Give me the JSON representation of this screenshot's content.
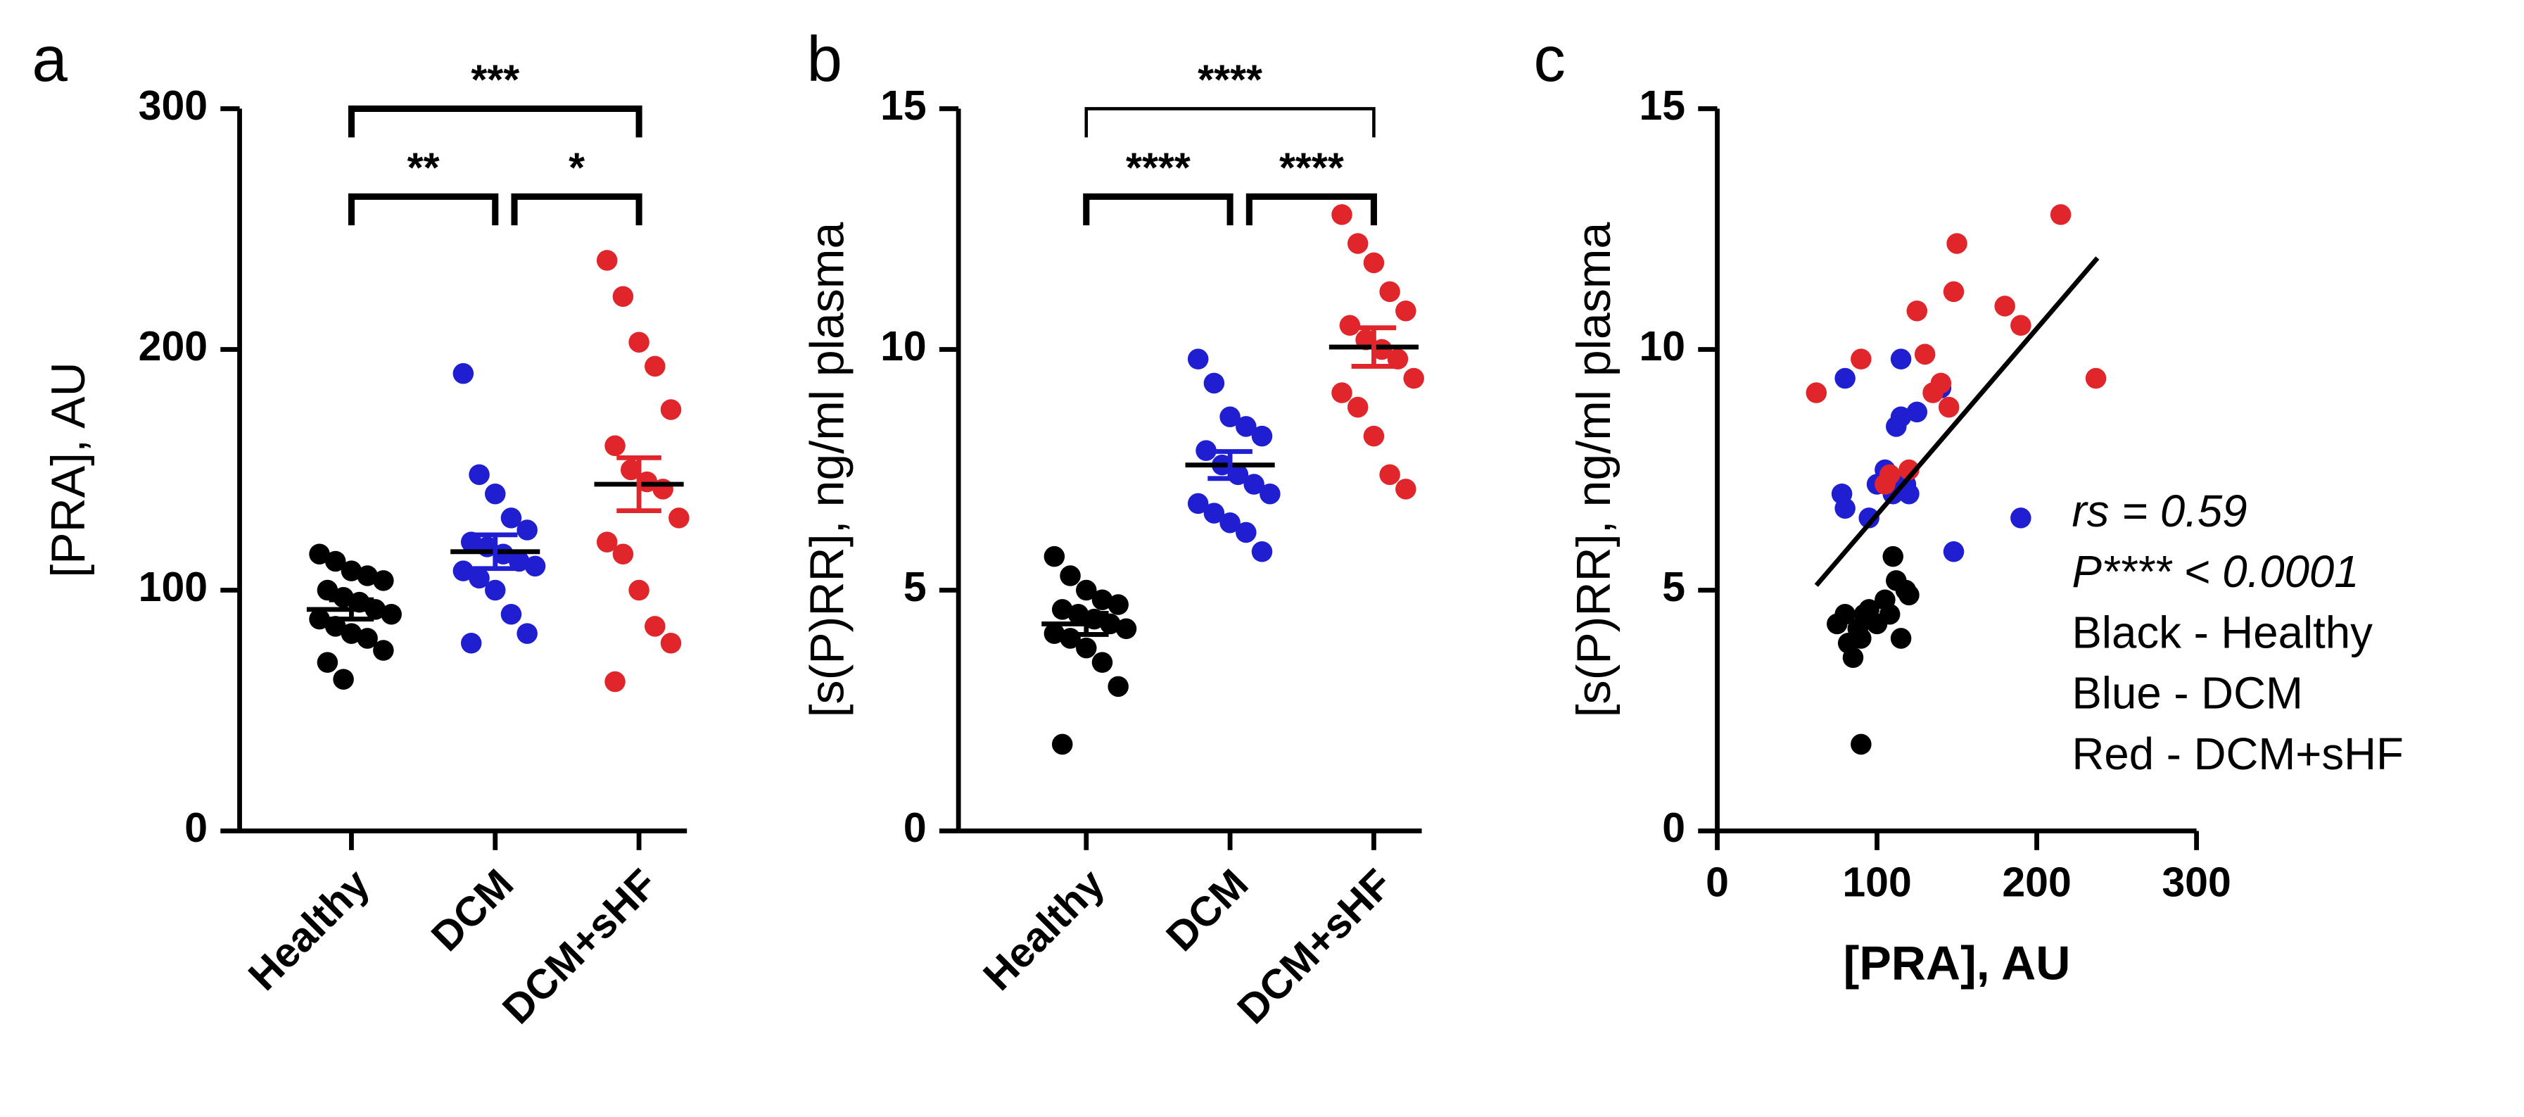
{
  "chart_data": [
    {
      "type": "dotplot",
      "panel_label": "a",
      "ylabel": "[PRA], AU",
      "categories": [
        "Healthy",
        "DCM",
        "DCM+sHF"
      ],
      "ylim": [
        0,
        300
      ],
      "yticks": [
        0,
        100,
        200,
        300
      ],
      "groups": [
        {
          "color": "#000000",
          "values": [
            115,
            112,
            108,
            106,
            104,
            100,
            97,
            95,
            92,
            90,
            88,
            85,
            82,
            80,
            75,
            70,
            63
          ],
          "mean": 92,
          "sem": 4
        },
        {
          "color": "#1f1fd1",
          "values": [
            190,
            148,
            140,
            130,
            125,
            120,
            118,
            115,
            112,
            110,
            108,
            105,
            100,
            90,
            82,
            78
          ],
          "mean": 116,
          "sem": 7
        },
        {
          "color": "#e0262a",
          "values": [
            237,
            222,
            203,
            193,
            175,
            160,
            150,
            145,
            142,
            130,
            120,
            115,
            100,
            85,
            78,
            62
          ],
          "mean": 144,
          "sem": 11
        }
      ],
      "comparisons": [
        {
          "label": "***",
          "groups": [
            0,
            2
          ]
        },
        {
          "label": "**",
          "groups": [
            0,
            1
          ]
        },
        {
          "label": "*",
          "groups": [
            1,
            2
          ]
        }
      ]
    },
    {
      "type": "dotplot",
      "panel_label": "b",
      "ylabel": "[s(P)RR], ng/ml plasma",
      "categories": [
        "Healthy",
        "DCM",
        "DCM+sHF"
      ],
      "ylim": [
        0,
        15
      ],
      "yticks": [
        0,
        5,
        10,
        15
      ],
      "groups": [
        {
          "color": "#000000",
          "values": [
            5.7,
            5.3,
            5.0,
            4.8,
            4.7,
            4.6,
            4.5,
            4.4,
            4.3,
            4.2,
            4.1,
            4.0,
            3.8,
            3.5,
            3.0,
            1.8
          ],
          "mean": 4.3,
          "sem": 0.22
        },
        {
          "color": "#1f1fd1",
          "values": [
            9.8,
            9.3,
            8.6,
            8.4,
            8.2,
            7.9,
            7.6,
            7.4,
            7.2,
            7.0,
            6.8,
            6.6,
            6.4,
            6.2,
            5.8
          ],
          "mean": 7.6,
          "sem": 0.28
        },
        {
          "color": "#e0262a",
          "values": [
            12.8,
            12.2,
            11.8,
            11.2,
            10.8,
            10.5,
            10.2,
            10.0,
            9.8,
            9.4,
            9.1,
            8.8,
            8.2,
            7.4,
            7.1
          ],
          "mean": 10.05,
          "sem": 0.4
        }
      ],
      "comparisons": [
        {
          "label": "****",
          "groups": [
            0,
            2
          ]
        },
        {
          "label": "****",
          "groups": [
            0,
            1
          ]
        },
        {
          "label": "****",
          "groups": [
            1,
            2
          ]
        }
      ]
    },
    {
      "type": "scatter",
      "panel_label": "c",
      "ylabel": "[s(P)RR], ng/ml plasma",
      "xlabel": "[PRA], AU",
      "xlim": [
        0,
        300
      ],
      "xticks": [
        0,
        100,
        200,
        300
      ],
      "ylim": [
        0,
        15
      ],
      "yticks": [
        0,
        5,
        10,
        15
      ],
      "series": [
        {
          "color": "#000000",
          "x": [
            80,
            85,
            88,
            90,
            92,
            95,
            100,
            105,
            108,
            110,
            112,
            115,
            118,
            120,
            90,
            75,
            82
          ],
          "y": [
            4.5,
            3.6,
            4.2,
            4.0,
            4.5,
            4.6,
            4.3,
            4.8,
            4.5,
            5.7,
            5.2,
            4.0,
            5.0,
            4.9,
            1.8,
            4.3,
            3.9
          ]
        },
        {
          "color": "#1f1fd1",
          "x": [
            78,
            80,
            80,
            95,
            100,
            105,
            110,
            112,
            115,
            115,
            118,
            120,
            125,
            140,
            148,
            190
          ],
          "y": [
            7.0,
            6.7,
            9.4,
            6.5,
            7.2,
            7.5,
            7.0,
            8.4,
            8.6,
            9.8,
            7.2,
            7.0,
            8.7,
            9.2,
            5.8,
            6.5
          ]
        },
        {
          "color": "#e0262a",
          "x": [
            62,
            90,
            105,
            108,
            120,
            125,
            130,
            135,
            140,
            145,
            148,
            150,
            180,
            190,
            215,
            237
          ],
          "y": [
            9.1,
            9.8,
            7.2,
            7.4,
            7.5,
            10.8,
            9.9,
            9.1,
            9.3,
            8.8,
            11.2,
            12.2,
            10.9,
            10.5,
            12.8,
            9.4
          ]
        }
      ],
      "fit": {
        "color": "#000000",
        "x": [
          62,
          238
        ],
        "y": [
          5.1,
          11.9
        ]
      },
      "annotations": [
        "rs = 0.59",
        "P**** < 0.0001",
        "Black - Healthy",
        "Blue - DCM",
        "Red - DCM+sHF"
      ]
    }
  ]
}
